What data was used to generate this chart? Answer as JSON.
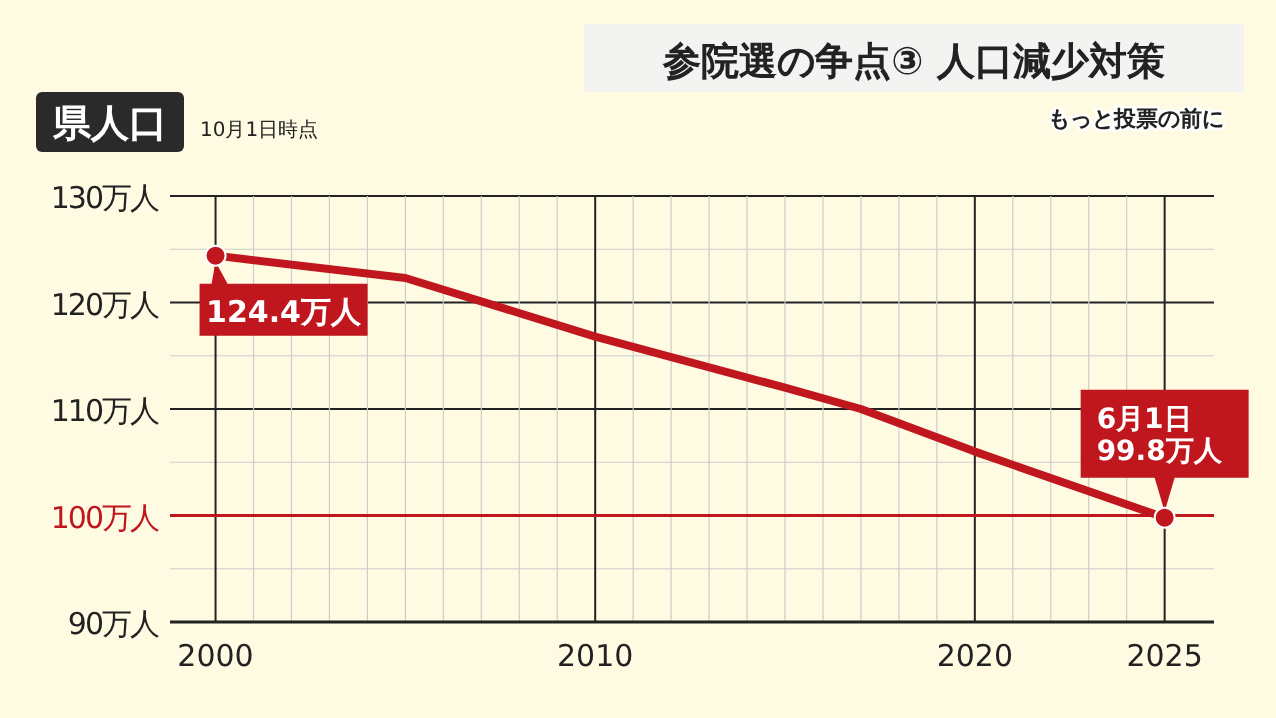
{
  "chart_data": {
    "type": "line",
    "title": "参院選の争点③ 人口減少対策",
    "subtitle": "もっと投票の前に",
    "ylabel": "県人口",
    "annotations": [
      "10月1日時点",
      {
        "text": "124.4万人",
        "x": 2000,
        "y": 124.4
      },
      {
        "text": "6月1日\n99.8万人",
        "x": 2025,
        "y": 99.8
      }
    ],
    "series": [
      {
        "color": "#c0161e",
        "x": [
          2000,
          2005,
          2010,
          2015,
          2017,
          2020,
          2025
        ],
        "values": [
          124.4,
          122.3,
          116.8,
          112.0,
          110.0,
          106.0,
          99.8
        ]
      }
    ],
    "xlim": [
      1998.8,
      2026.3
    ],
    "ylim": [
      90,
      130
    ],
    "xticks": [
      2000,
      {
        "value": 2001,
        "label": null
      },
      {
        "value": 2002,
        "label": null
      },
      {
        "value": 2003,
        "label": null
      },
      {
        "value": 2004,
        "label": null
      },
      {
        "value": 2005,
        "label": null
      },
      {
        "value": 2006,
        "label": null
      },
      {
        "value": 2007,
        "label": null
      },
      {
        "value": 2008,
        "label": null
      },
      {
        "value": 2009,
        "label": null
      },
      2010,
      {
        "value": 2011,
        "label": null
      },
      {
        "value": 2012,
        "label": null
      },
      {
        "value": 2013,
        "label": null
      },
      {
        "value": 2014,
        "label": null
      },
      {
        "value": 2015,
        "label": null
      },
      {
        "value": 2016,
        "label": null
      },
      {
        "value": 2017,
        "label": null
      },
      {
        "value": 2018,
        "label": null
      },
      {
        "value": 2019,
        "label": null
      },
      2020,
      {
        "value": 2021,
        "label": null
      },
      {
        "value": 2022,
        "label": null
      },
      {
        "value": 2023,
        "label": null
      },
      {
        "value": 2024,
        "label": null
      },
      2025
    ],
    "yticks": [
      {
        "value": 90,
        "label": "90万人"
      },
      {
        "value": 95,
        "label": null
      },
      {
        "value": 100,
        "label": "100万人"
      },
      {
        "value": 105,
        "label": null
      },
      {
        "value": 110,
        "label": "110万人"
      },
      {
        "value": 115,
        "label": null
      },
      {
        "value": 120,
        "label": "120万人"
      },
      {
        "value": 125,
        "label": null
      },
      {
        "value": 130,
        "label": "130万人"
      }
    ],
    "ref_lines": [
      {
        "axis": "y",
        "value": 100,
        "color": "#c0161e"
      }
    ],
    "grid": true,
    "marker": "none",
    "line_style": "solid"
  }
}
